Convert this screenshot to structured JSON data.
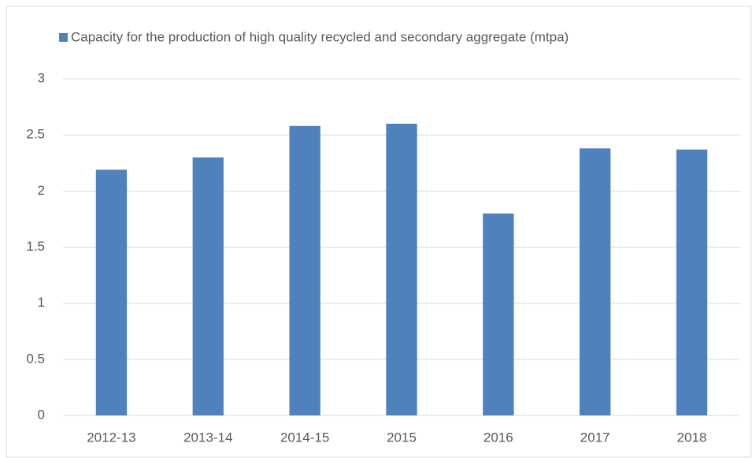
{
  "chart_data": {
    "type": "bar",
    "categories": [
      "2012-13",
      "2013-14",
      "2014-15",
      "2015",
      "2016",
      "2017",
      "2018"
    ],
    "series": [
      {
        "name": "Capacity for the production of high quality recycled and secondary aggregate (mtpa)",
        "color": "#4f81bd",
        "values": [
          2.19,
          2.3,
          2.58,
          2.6,
          1.8,
          2.38,
          2.37
        ]
      }
    ],
    "ylim": [
      0,
      3
    ],
    "yticks": [
      0,
      0.5,
      1,
      1.5,
      2,
      2.5,
      3
    ],
    "grid": true,
    "legend": "top"
  }
}
